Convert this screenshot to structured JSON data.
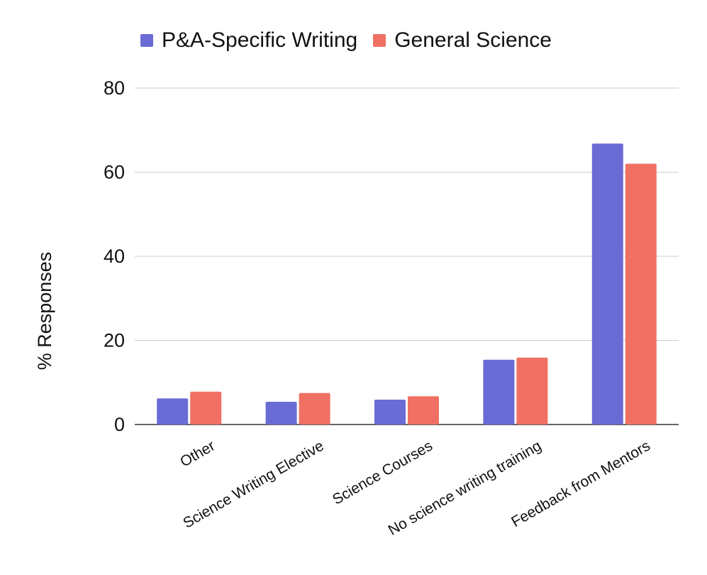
{
  "chart_data": {
    "type": "bar",
    "categories": [
      "Other",
      "Science Writing Elective",
      "Science Courses",
      "No science writing training",
      "Feedback from Mentors"
    ],
    "series": [
      {
        "name": "P&A-Specific Writing",
        "color": "#6b6bd6",
        "values": [
          6.2,
          5.4,
          5.9,
          15.4,
          66.8
        ]
      },
      {
        "name": "General Science",
        "color": "#f07064",
        "values": [
          7.8,
          7.5,
          6.7,
          15.9,
          62.0
        ]
      }
    ],
    "ylabel": "% Responses",
    "xlabel": "",
    "ylim": [
      0,
      80
    ],
    "yticks": [
      0,
      20,
      40,
      60,
      80
    ],
    "grid": true,
    "legend_position": "top-left"
  }
}
